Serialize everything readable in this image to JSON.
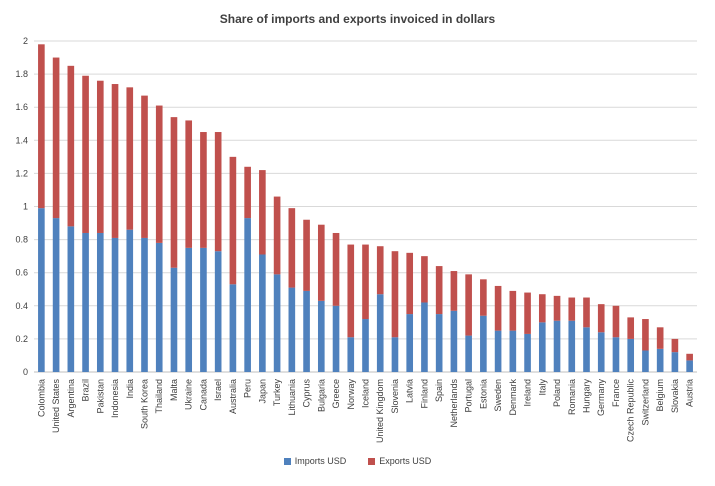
{
  "chart_data": {
    "type": "bar",
    "stacked": true,
    "title": "Share of imports and exports invoiced in dollars",
    "xlabel": "",
    "ylabel": "",
    "ylim": [
      0,
      2
    ],
    "yticks": [
      "0",
      "0.2",
      "0.4",
      "0.6",
      "0.8",
      "1",
      "1.2",
      "1.4",
      "1.6",
      "1.8",
      "2"
    ],
    "grid": true,
    "legend_position": "bottom",
    "categories": [
      "Colombia",
      "United States",
      "Argentina",
      "Brazil",
      "Pakistan",
      "Indonesia",
      "India",
      "South Korea",
      "Thailand",
      "Malta",
      "Ukraine",
      "Canada",
      "Israel",
      "Australia",
      "Peru",
      "Japan",
      "Turkey",
      "Lithuania",
      "Cyprus",
      "Bulgaria",
      "Greece",
      "Norway",
      "Iceland",
      "United Kingdom",
      "Slovenia",
      "Latvia",
      "Finland",
      "Spain",
      "Netherlands",
      "Portugal",
      "Estonia",
      "Sweden",
      "Denmark",
      "Ireland",
      "Italy",
      "Poland",
      "Romania",
      "Hungary",
      "Germany",
      "France",
      "Czech Republic",
      "Switzerland",
      "Belgium",
      "Slovakia",
      "Austria"
    ],
    "series": [
      {
        "name": "Imports USD",
        "color": "#4f81bd",
        "values": [
          0.99,
          0.93,
          0.88,
          0.84,
          0.84,
          0.81,
          0.86,
          0.81,
          0.78,
          0.63,
          0.75,
          0.75,
          0.73,
          0.53,
          0.93,
          0.71,
          0.59,
          0.51,
          0.49,
          0.43,
          0.4,
          0.21,
          0.32,
          0.47,
          0.21,
          0.35,
          0.42,
          0.35,
          0.37,
          0.22,
          0.34,
          0.25,
          0.25,
          0.23,
          0.3,
          0.31,
          0.31,
          0.27,
          0.24,
          0.21,
          0.2,
          0.13,
          0.14,
          0.12,
          0.07
        ]
      },
      {
        "name": "Exports USD",
        "color": "#c0504d",
        "values": [
          0.99,
          0.97,
          0.97,
          0.95,
          0.92,
          0.93,
          0.86,
          0.86,
          0.83,
          0.91,
          0.77,
          0.7,
          0.72,
          0.77,
          0.31,
          0.51,
          0.47,
          0.48,
          0.43,
          0.46,
          0.44,
          0.56,
          0.45,
          0.29,
          0.52,
          0.37,
          0.28,
          0.29,
          0.24,
          0.37,
          0.22,
          0.27,
          0.24,
          0.25,
          0.17,
          0.15,
          0.14,
          0.18,
          0.17,
          0.19,
          0.13,
          0.19,
          0.13,
          0.08,
          0.04
        ]
      }
    ]
  }
}
